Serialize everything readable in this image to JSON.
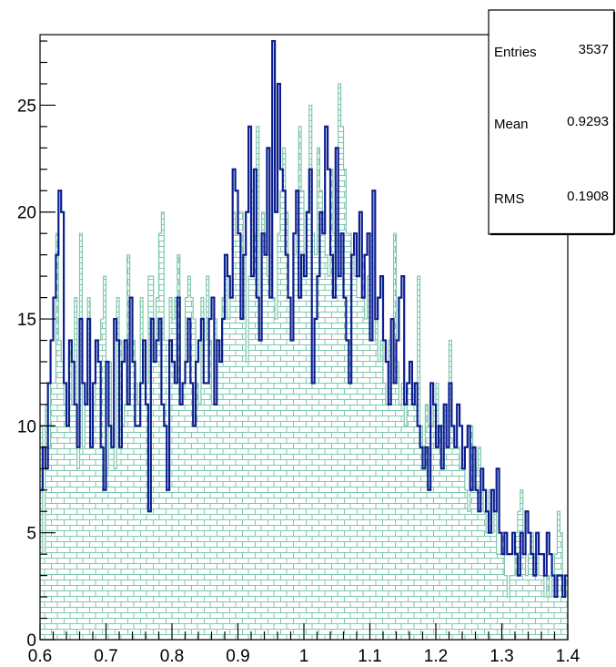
{
  "chart_data": {
    "type": "histogram",
    "xlim": [
      0.6,
      1.4
    ],
    "ylim": [
      0,
      28.3
    ],
    "bin_width": 0.004,
    "x_ticks": [
      {
        "value": 0.6,
        "label": "0.6"
      },
      {
        "value": 0.7,
        "label": "0.7"
      },
      {
        "value": 0.8,
        "label": "0.8"
      },
      {
        "value": 0.9,
        "label": "0.9"
      },
      {
        "value": 1.0,
        "label": "1"
      },
      {
        "value": 1.1,
        "label": "1.1"
      },
      {
        "value": 1.2,
        "label": "1.2"
      },
      {
        "value": 1.3,
        "label": "1.3"
      },
      {
        "value": 1.4,
        "label": "1.4"
      }
    ],
    "y_ticks": [
      {
        "value": 0,
        "label": "0"
      },
      {
        "value": 5,
        "label": "5"
      },
      {
        "value": 10,
        "label": "10"
      },
      {
        "value": 15,
        "label": "15"
      },
      {
        "value": 20,
        "label": "20"
      },
      {
        "value": 25,
        "label": "25"
      }
    ],
    "grid": false,
    "stats_box": {
      "placement": "top-right",
      "entries_label": "Entries",
      "entries_value": "3537",
      "mean_label": "Mean",
      "mean_value": "0.9293",
      "rms_label": "RMS",
      "rms_value": "0.1908"
    },
    "series": [
      {
        "style": "filled-brick-pattern",
        "color": "#7fc7ad",
        "values": [
          10,
          4,
          11,
          9,
          12,
          12,
          19,
          14,
          13,
          11,
          10,
          14,
          11,
          16,
          8,
          19,
          9,
          11,
          16,
          12,
          11,
          13,
          14,
          15,
          17,
          8,
          13,
          9,
          8,
          16,
          14,
          10,
          11,
          18,
          13,
          14,
          12,
          11,
          16,
          14,
          12,
          17,
          17,
          13,
          16,
          19,
          20,
          14,
          14,
          16,
          15,
          16,
          18,
          12,
          12,
          16,
          17,
          16,
          15,
          12,
          11,
          16,
          14,
          17,
          14,
          11,
          15,
          14,
          14,
          16,
          17,
          15,
          16,
          20,
          19,
          20,
          20,
          18,
          13,
          17,
          21,
          19,
          24,
          15,
          20,
          19,
          17,
          18,
          16,
          15,
          19,
          21,
          23,
          20,
          16,
          14,
          18,
          21,
          24,
          21,
          17,
          20,
          25,
          19,
          18,
          23,
          21,
          20,
          18,
          17,
          22,
          19,
          21,
          26,
          24,
          22,
          19,
          19,
          18,
          17,
          16,
          16,
          18,
          15,
          17,
          19,
          14,
          15,
          13,
          14,
          12,
          11,
          14,
          12,
          19,
          13,
          11,
          12,
          10,
          12,
          13,
          12,
          11,
          17,
          10,
          9,
          11,
          10,
          10,
          11,
          12,
          10,
          10,
          11,
          9,
          14,
          10,
          9,
          9,
          8,
          9,
          7,
          6,
          10,
          9,
          8,
          9,
          7,
          6,
          5,
          7,
          5,
          6,
          4,
          4,
          5,
          3,
          2,
          3,
          3,
          5,
          6,
          7,
          4,
          3,
          4,
          5,
          4,
          4,
          3,
          3,
          2,
          3,
          2,
          3,
          4,
          6,
          5,
          3,
          3
        ]
      },
      {
        "style": "line-step",
        "color": "#0b1f8f",
        "values": [
          7,
          9,
          8,
          12,
          14,
          16,
          18,
          21,
          20,
          12,
          10,
          14,
          13,
          11,
          9,
          15,
          12,
          11,
          15,
          9,
          12,
          14,
          13,
          9,
          7,
          13,
          10,
          9,
          15,
          14,
          9,
          13,
          14,
          11,
          16,
          13,
          10,
          10,
          12,
          14,
          11,
          6,
          15,
          13,
          14,
          15,
          11,
          10,
          7,
          14,
          13,
          12,
          16,
          11,
          12,
          13,
          15,
          12,
          10,
          13,
          14,
          15,
          12,
          12,
          15,
          16,
          11,
          14,
          13,
          15,
          18,
          17,
          16,
          22,
          21,
          19,
          15,
          18,
          20,
          24,
          17,
          22,
          16,
          14,
          19,
          18,
          23,
          16,
          28,
          20,
          26,
          22,
          21,
          18,
          16,
          14,
          19,
          21,
          16,
          18,
          17,
          20,
          22,
          12,
          15,
          17,
          20,
          19,
          24,
          22,
          18,
          16,
          23,
          17,
          19,
          16,
          14,
          12,
          18,
          19,
          17,
          20,
          16,
          18,
          19,
          14,
          21,
          15,
          16,
          17,
          14,
          13,
          11,
          15,
          12,
          14,
          16,
          17,
          11,
          12,
          13,
          11,
          12,
          10,
          9,
          8,
          9,
          7,
          12,
          11,
          9,
          10,
          8,
          11,
          9,
          12,
          10,
          9,
          11,
          10,
          8,
          9,
          10,
          7,
          9,
          7,
          6,
          8,
          7,
          6,
          5,
          7,
          6,
          8,
          5,
          4,
          5,
          4,
          4,
          5,
          4,
          3,
          5,
          4,
          6,
          5,
          4,
          3,
          5,
          4,
          4,
          3,
          5,
          4,
          3,
          2,
          3,
          3,
          2,
          3
        ]
      }
    ]
  }
}
